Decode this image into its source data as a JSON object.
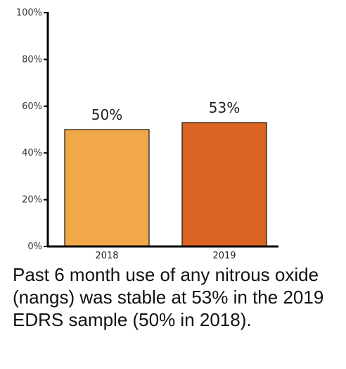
{
  "chart_data": {
    "type": "bar",
    "categories": [
      "2018",
      "2019"
    ],
    "values": [
      50,
      53
    ],
    "data_labels": [
      "50%",
      "53%"
    ],
    "colors": [
      "#F0A848",
      "#DB6322"
    ],
    "ylim": [
      0,
      100
    ],
    "yticks": [
      0,
      20,
      40,
      60,
      80,
      100
    ],
    "ytick_labels": [
      "0%",
      "20%",
      "40%",
      "60%",
      "80%",
      "100%"
    ],
    "grid": false,
    "legend": "none",
    "xlabel": "",
    "ylabel": ""
  },
  "caption": "Past 6 month use of any nitrous oxide (nangs) was stable at 53% in the 2019 EDRS sample (50% in 2018)."
}
